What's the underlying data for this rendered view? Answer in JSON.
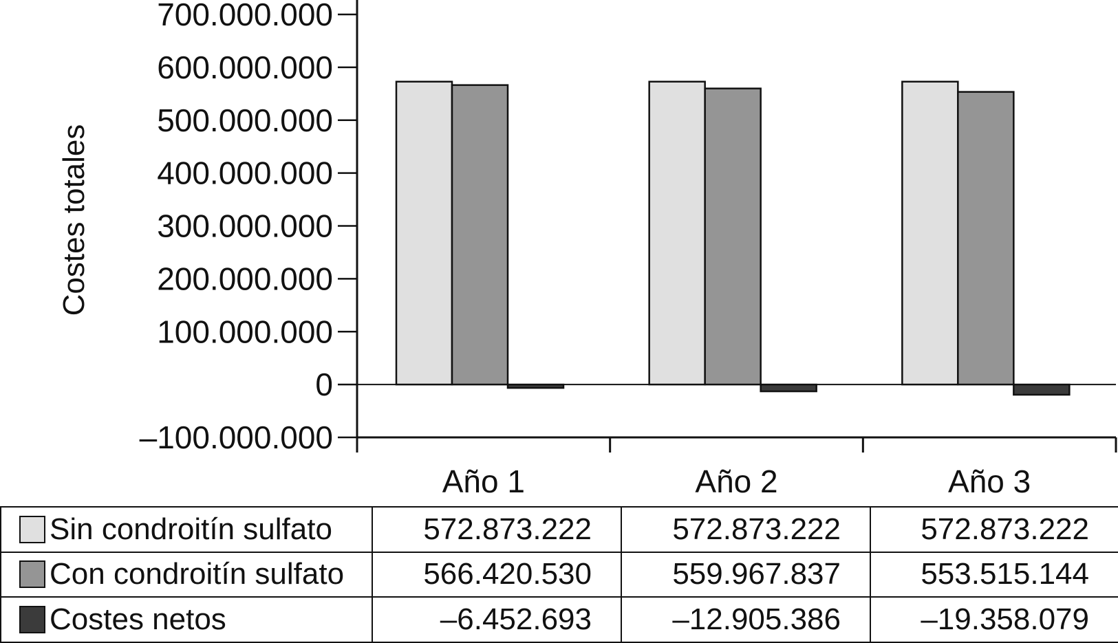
{
  "chart_data": {
    "type": "bar",
    "ylabel": "Costes totales",
    "xlabel": "",
    "ylim": [
      -100000000,
      700000000
    ],
    "yticks": [
      -100000000,
      0,
      100000000,
      200000000,
      300000000,
      400000000,
      500000000,
      600000000,
      700000000
    ],
    "ytick_labels": [
      "–100.000.000",
      "0",
      "100.000.000",
      "200.000.000",
      "300.000.000",
      "400.000.000",
      "500.000.000",
      "600.000.000",
      "700.000.000"
    ],
    "categories": [
      "Año 1",
      "Año 2",
      "Año 3"
    ],
    "grid": false,
    "legend": "table-below",
    "series": [
      {
        "name": "Sin condroitín sulfato",
        "color": "#e0e0e0",
        "values": [
          572873222,
          572873222,
          572873222
        ],
        "labels": [
          "572.873.222",
          "572.873.222",
          "572.873.222"
        ]
      },
      {
        "name": "Con condroitín sulfato",
        "color": "#959595",
        "values": [
          566420530,
          559967837,
          553515144
        ],
        "labels": [
          "566.420.530",
          "559.967.837",
          "553.515.144"
        ]
      },
      {
        "name": "Costes netos",
        "color": "#3b3b3b",
        "values": [
          -6452693,
          -12905386,
          -19358079
        ],
        "labels": [
          "–6.452.693",
          "–12.905.386",
          "–19.358.079"
        ]
      }
    ]
  }
}
